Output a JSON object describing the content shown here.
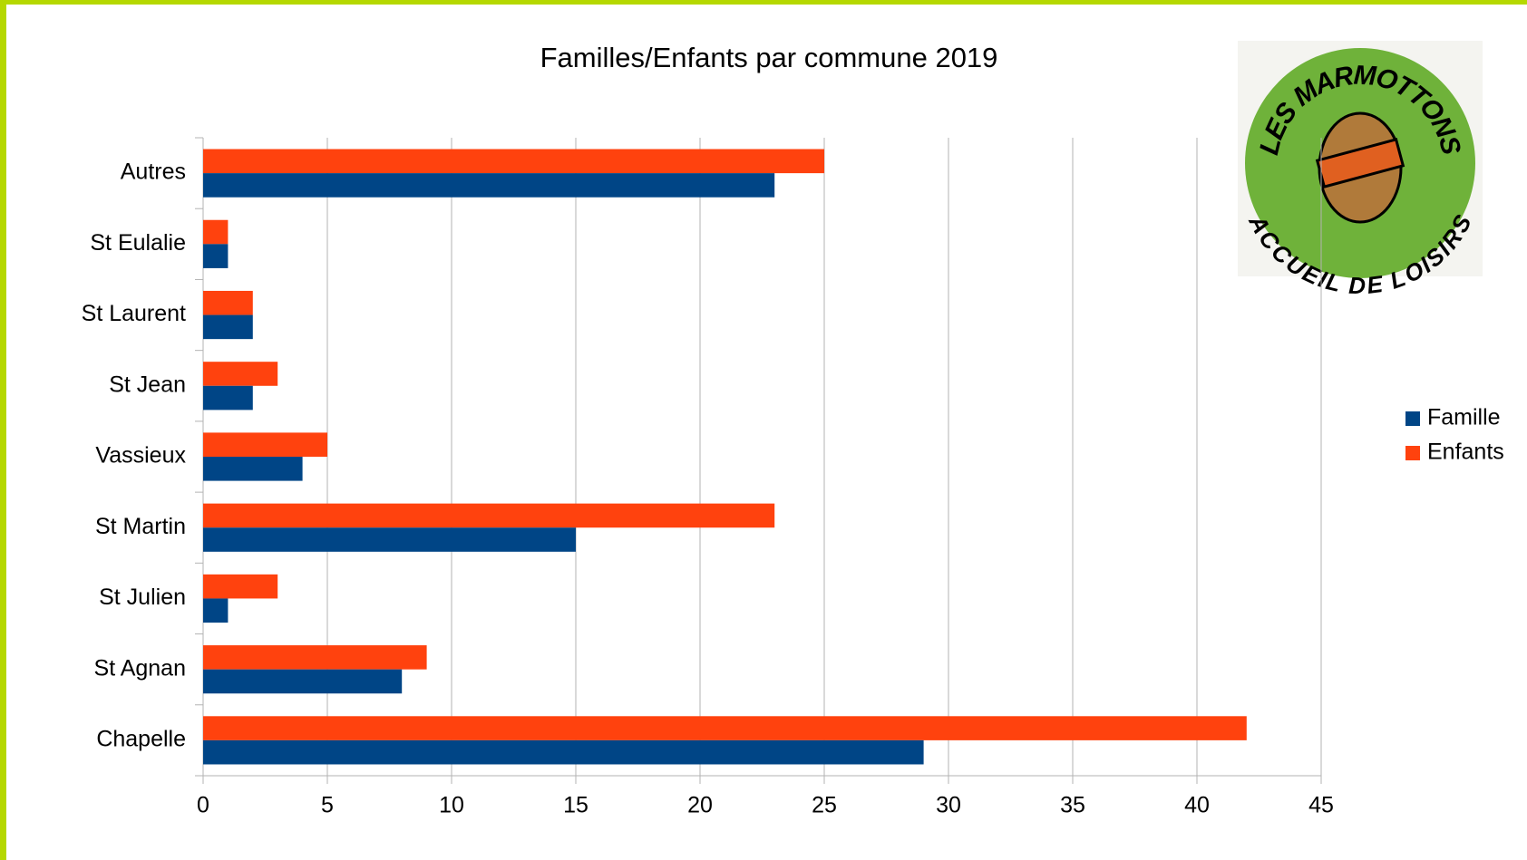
{
  "chart_data": {
    "type": "barh",
    "title": "Familles/Enfants par commune 2019",
    "categories": [
      "Autres",
      "St Eulalie",
      "St Laurent",
      "St Jean",
      "Vassieux",
      "St Martin",
      "St Julien",
      "St Agnan",
      "Chapelle"
    ],
    "series": [
      {
        "name": "Famille",
        "color": "#004586",
        "values": [
          23,
          1,
          2,
          2,
          4,
          15,
          1,
          8,
          29
        ]
      },
      {
        "name": "Enfants",
        "color": "#ff420e",
        "values": [
          25,
          1,
          2,
          3,
          5,
          23,
          3,
          9,
          42
        ]
      }
    ],
    "xlim": [
      0,
      45
    ],
    "xticks": [
      0,
      5,
      10,
      15,
      20,
      25,
      30,
      35,
      40,
      45
    ],
    "grid": true,
    "legend": "right",
    "logo": {
      "top": "LES MARMOTTONS",
      "bottom": "ACCUEIL DE LOISIRS"
    }
  }
}
